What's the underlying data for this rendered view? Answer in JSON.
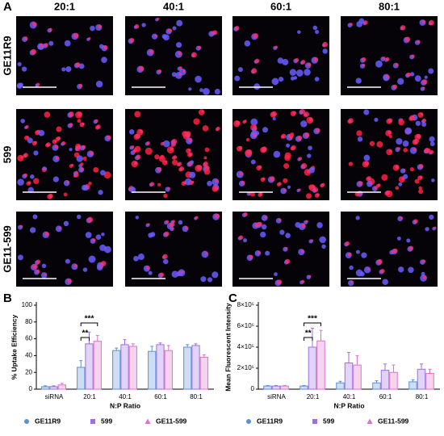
{
  "figure": {
    "label_a": "A",
    "columns": [
      "20:1",
      "40:1",
      "60:1",
      "80:1"
    ],
    "rows": [
      "GE11R9",
      "599",
      "GE11-599"
    ]
  },
  "chart_data": [
    {
      "type": "bar",
      "panel": "B",
      "ylabel": "% Uptake Efficiency",
      "xlabel": "N:P Ratio",
      "categories": [
        "siRNA",
        "20:1",
        "40:1",
        "60:1",
        "80:1"
      ],
      "ylim": [
        0,
        100
      ],
      "yticks": [
        0,
        20,
        40,
        60,
        80,
        100
      ],
      "series": [
        {
          "name": "GE11R9",
          "color": "#5b8fd6",
          "marker": "circle",
          "values": [
            3,
            26,
            46,
            45,
            50
          ],
          "errors": [
            1,
            8,
            3,
            6,
            3
          ]
        },
        {
          "name": "599",
          "color": "#9c6fe0",
          "marker": "square",
          "values": [
            3,
            54,
            53,
            53,
            52
          ],
          "errors": [
            1,
            14,
            6,
            2,
            2
          ]
        },
        {
          "name": "GE11-599",
          "color": "#e070c8",
          "marker": "triangle",
          "values": [
            5,
            57,
            51,
            46,
            38
          ],
          "errors": [
            2,
            7,
            3,
            6,
            3
          ]
        }
      ],
      "annotations": [
        "**",
        "***"
      ]
    },
    {
      "type": "bar",
      "panel": "C",
      "ylabel": "Mean Fluorescent Intensity",
      "xlabel": "N:P Ratio",
      "categories": [
        "siRNA",
        "20:1",
        "40:1",
        "60:1",
        "80:1"
      ],
      "ylim": [
        0,
        800000
      ],
      "yticks": [
        0,
        {
          "value": 200000,
          "label": "2×10⁵"
        },
        {
          "value": 400000,
          "label": "4×10⁵"
        },
        {
          "value": 600000,
          "label": "6×10⁵"
        },
        {
          "value": 800000,
          "label": "8×10⁵"
        }
      ],
      "series": [
        {
          "name": "GE11R9",
          "color": "#5b8fd6",
          "marker": "circle",
          "values": [
            30000,
            30000,
            60000,
            60000,
            70000
          ],
          "errors": [
            5000,
            5000,
            15000,
            20000,
            20000
          ]
        },
        {
          "name": "599",
          "color": "#9c6fe0",
          "marker": "square",
          "values": [
            30000,
            400000,
            250000,
            180000,
            190000
          ],
          "errors": [
            5000,
            180000,
            100000,
            60000,
            50000
          ]
        },
        {
          "name": "GE11-599",
          "color": "#e070c8",
          "marker": "triangle",
          "values": [
            30000,
            460000,
            230000,
            160000,
            150000
          ],
          "errors": [
            5000,
            100000,
            90000,
            70000,
            40000
          ]
        }
      ],
      "annotations": [
        "**",
        "***"
      ]
    }
  ]
}
